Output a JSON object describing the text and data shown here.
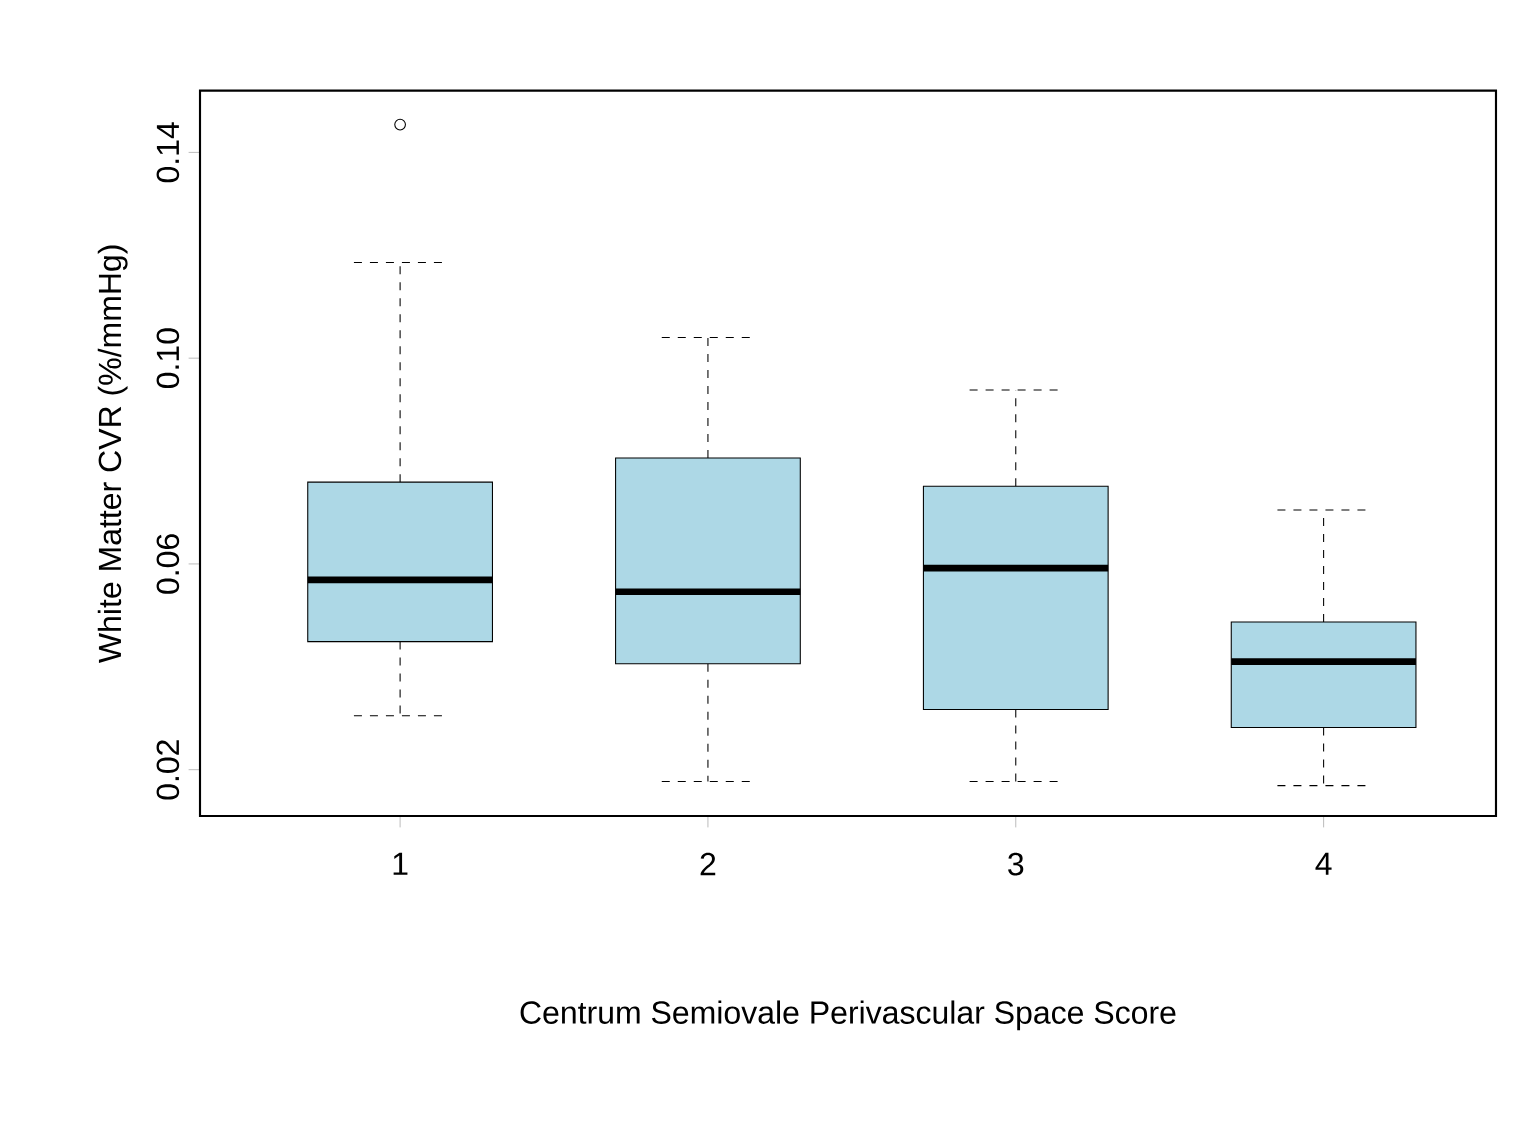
{
  "chart_data": {
    "type": "box",
    "xlabel": "Centrum Semiovale Perivascular Space Score",
    "ylabel": "White Matter CVR (%/mmHg)",
    "categories": [
      "1",
      "2",
      "3",
      "4"
    ],
    "boxes": [
      {
        "low": 0.0305,
        "q1": 0.0449,
        "median": 0.0569,
        "q3": 0.0759,
        "high": 0.1186,
        "outliers": [
          0.1454
        ]
      },
      {
        "low": 0.0177,
        "q1": 0.0406,
        "median": 0.0546,
        "q3": 0.0806,
        "high": 0.104
      },
      {
        "low": 0.0177,
        "q1": 0.0317,
        "median": 0.0592,
        "q3": 0.0751,
        "high": 0.0938
      },
      {
        "low": 0.0169,
        "q1": 0.0282,
        "median": 0.041,
        "q3": 0.0487,
        "high": 0.0705
      }
    ],
    "color": "#add8e6",
    "marker": "circle",
    "grid": false,
    "ylim": [
      0.011,
      0.152
    ],
    "yticks": [
      0.02,
      0.06,
      {
        "value": 0.1,
        "label": "0.10"
      },
      0.14
    ]
  }
}
